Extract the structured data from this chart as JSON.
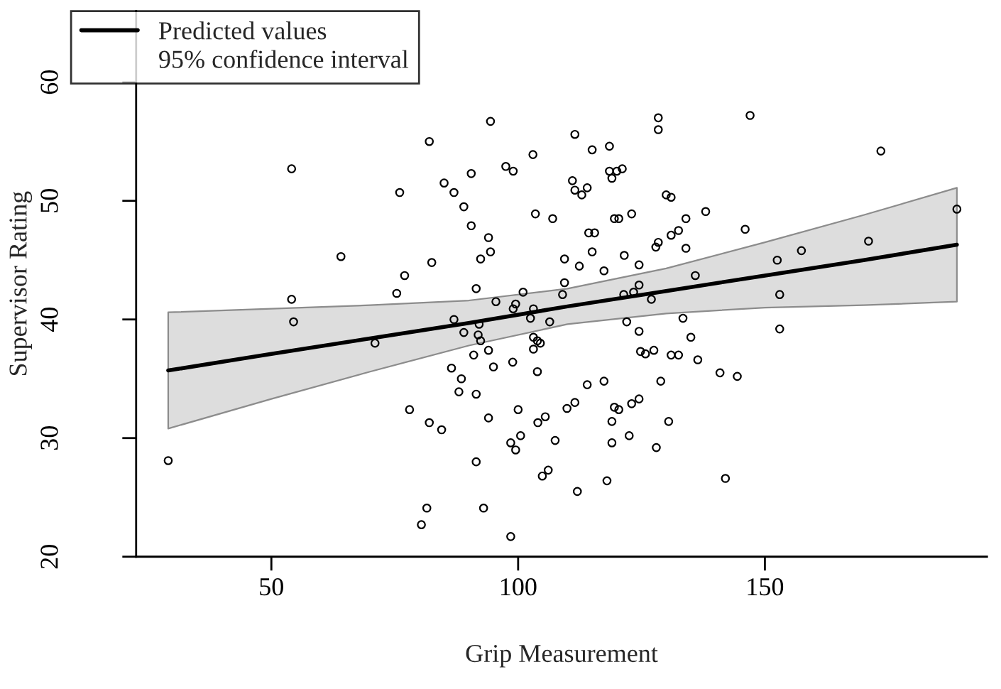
{
  "chart_data": {
    "type": "scatter",
    "xlabel": "Grip Measurement",
    "ylabel": "Supervisor Rating",
    "xlim": [
      22.6,
      195
    ],
    "ylim": [
      20,
      66
    ],
    "xticks": [
      50,
      100,
      150
    ],
    "yticks": [
      20,
      30,
      40,
      50,
      60
    ],
    "grid": false,
    "legend": "top left",
    "series": [
      {
        "type": "scatter",
        "color": "#000000",
        "marker": "circle",
        "x": [
          54.1,
          64.1,
          54.1,
          54.5,
          71.0,
          29.1,
          94.4,
          82.0,
          111.5,
          115.0,
          103.0,
          97.5,
          99.0,
          90.5,
          85.0,
          87.0,
          76.0,
          111.0,
          111.5,
          112.9,
          114.0,
          89.0,
          103.5,
          107.0,
          90.5,
          114.3,
          115.5,
          94.0,
          94.4,
          92.4,
          115.0,
          109.4,
          112.4,
          82.5,
          77.0,
          75.4,
          91.5,
          109.4,
          109.0,
          101.0,
          95.5,
          99.5,
          99.0,
          103.1,
          102.5,
          106.4,
          87.0,
          92.1,
          89.0,
          91.9,
          92.4,
          103.1,
          103.9,
          104.5,
          103.1,
          94.0,
          91.0,
          86.5,
          88.5,
          95.0,
          98.9,
          103.9,
          88.0,
          91.5,
          114.0,
          78.0,
          82.0,
          84.5,
          94.0,
          100.0,
          104.0,
          105.5,
          109.9,
          111.5,
          107.5,
          98.5,
          99.5,
          100.5,
          91.5,
          104.9,
          106.1,
          112.0,
          81.5,
          80.4,
          93.0,
          98.5,
          128.4,
          147.0,
          128.4,
          118.5,
          173.5,
          118.5,
          120.0,
          121.1,
          119.0,
          130.0,
          131.0,
          119.5,
          120.4,
          123.0,
          134.0,
          138.0,
          188.9,
          132.5,
          131.0,
          146.0,
          128.4,
          127.9,
          134.0,
          171.0,
          157.4,
          121.5,
          152.5,
          117.4,
          124.5,
          135.9,
          121.4,
          123.4,
          124.5,
          127.0,
          153.0,
          122.0,
          124.5,
          133.4,
          135.0,
          153.0,
          124.8,
          125.8,
          127.5,
          131.0,
          132.5,
          136.4,
          140.9,
          144.4,
          117.4,
          128.9,
          119.5,
          120.4,
          123.0,
          124.5,
          119.0,
          130.5,
          119.0,
          122.5,
          128.0,
          118.0,
          142.0
        ],
        "values": [
          52.7,
          45.3,
          41.7,
          39.8,
          38.0,
          28.1,
          56.7,
          55.0,
          55.6,
          54.3,
          53.9,
          52.9,
          52.5,
          52.3,
          51.5,
          50.7,
          50.7,
          51.7,
          50.9,
          50.5,
          51.1,
          49.5,
          48.9,
          48.5,
          47.9,
          47.3,
          47.3,
          46.9,
          45.7,
          45.1,
          45.7,
          45.1,
          44.5,
          44.8,
          43.7,
          42.2,
          42.6,
          43.1,
          42.1,
          42.3,
          41.5,
          41.3,
          40.9,
          40.9,
          40.1,
          39.8,
          40.0,
          39.6,
          38.9,
          38.7,
          38.2,
          38.5,
          38.2,
          38.0,
          37.5,
          37.4,
          37.0,
          35.9,
          35.0,
          36.0,
          36.4,
          35.6,
          33.9,
          33.7,
          34.5,
          32.4,
          31.3,
          30.7,
          31.7,
          32.4,
          31.3,
          31.8,
          32.5,
          33.0,
          29.8,
          29.6,
          29.0,
          30.2,
          28.0,
          26.8,
          27.3,
          25.5,
          24.1,
          22.7,
          24.1,
          21.7,
          57.0,
          57.2,
          56.0,
          54.6,
          54.2,
          52.5,
          52.5,
          52.7,
          51.9,
          50.5,
          50.3,
          48.5,
          48.5,
          48.9,
          48.5,
          49.1,
          49.3,
          47.5,
          47.1,
          47.6,
          46.5,
          46.1,
          46.0,
          46.6,
          45.8,
          45.4,
          45.0,
          44.1,
          44.6,
          43.7,
          42.1,
          42.3,
          42.9,
          41.7,
          42.1,
          39.8,
          39.0,
          40.1,
          38.5,
          39.2,
          37.3,
          37.1,
          37.4,
          37.0,
          37.0,
          36.6,
          35.5,
          35.2,
          34.8,
          34.8,
          32.6,
          32.4,
          32.9,
          33.3,
          31.4,
          31.4,
          29.6,
          30.2,
          29.2,
          26.4,
          26.6
        ]
      },
      {
        "type": "line",
        "name": "Predicted values",
        "color": "#000000",
        "marker": "none",
        "x": [
          29.1,
          50,
          70,
          90,
          110,
          130,
          150,
          170,
          188.9
        ],
        "values": [
          35.7,
          37.1,
          38.4,
          39.7,
          41.1,
          42.4,
          43.7,
          45.0,
          46.3
        ],
        "lower": [
          30.8,
          33.3,
          35.6,
          37.8,
          39.6,
          40.5,
          41.0,
          41.2,
          41.5
        ],
        "upper": [
          40.6,
          40.9,
          41.2,
          41.6,
          42.6,
          44.3,
          46.5,
          48.8,
          51.1
        ]
      }
    ],
    "annotations": [
      "95% confidence interval"
    ]
  }
}
